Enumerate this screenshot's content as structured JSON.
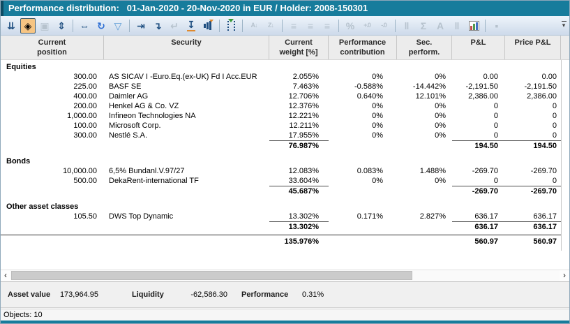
{
  "window": {
    "title": "Performance distribution:   01-Jan-2020 - 20-Nov-2020 in EUR / Holder: 2008-150301",
    "status": "Objects: 10"
  },
  "colors": {
    "accent_teal": "#177c9c",
    "active_icon_bg": "#f7c583",
    "enabled_icon": "#1d4d7f",
    "disabled_icon": "#b6c2cd",
    "orange_accent": "#e08a2e"
  },
  "toolbar": {
    "overflow_glyph": "▾",
    "items": [
      {
        "name": "collapse-tree-icon",
        "glyph": "⇊",
        "state": "enabled"
      },
      {
        "name": "fit-to-window-icon",
        "glyph": "◈",
        "state": "active"
      },
      {
        "name": "select-branch-icon",
        "glyph": "▣",
        "state": "disabled"
      },
      {
        "name": "fit-height-icon",
        "glyph": "⇕",
        "state": "enabled"
      },
      {
        "separator": true
      },
      {
        "name": "fit-width-icon",
        "glyph": "⇔",
        "state": "enabled"
      },
      {
        "name": "refresh-icon",
        "glyph": "↻",
        "state": "enabled",
        "color": "#2e6fd4"
      },
      {
        "name": "filter-icon",
        "glyph": "▽",
        "state": "enabled",
        "color": "#5b9bd5"
      },
      {
        "separator": true
      },
      {
        "name": "insert-column-icon",
        "glyph": "⇥",
        "state": "enabled"
      },
      {
        "name": "insert-row-icon",
        "glyph": "↴",
        "state": "enabled"
      },
      {
        "name": "undo-icon",
        "glyph": "↵",
        "state": "disabled"
      },
      {
        "name": "import-values-icon",
        "glyph": "↧",
        "state": "enabled",
        "accent": "underline"
      },
      {
        "name": "update-chart-icon",
        "kind": "bars",
        "state": "enabled"
      },
      {
        "separator": true
      },
      {
        "name": "column-select-icon",
        "kind": "dotted",
        "state": "enabled"
      },
      {
        "separator": true
      },
      {
        "name": "sort-ascending-icon",
        "glyph": "A↓",
        "state": "disabled",
        "small": true
      },
      {
        "name": "sort-descending-icon",
        "glyph": "Z↓",
        "state": "disabled",
        "small": true
      },
      {
        "separator": true
      },
      {
        "name": "align-left-icon",
        "glyph": "≡",
        "state": "disabled"
      },
      {
        "name": "align-center-icon",
        "glyph": "≡",
        "state": "disabled"
      },
      {
        "name": "align-right-icon",
        "glyph": "≡",
        "state": "disabled"
      },
      {
        "separator": true
      },
      {
        "name": "percent-format-icon",
        "glyph": "%",
        "state": "disabled"
      },
      {
        "name": "increase-decimal-icon",
        "glyph": "+.0",
        "state": "disabled",
        "small": true
      },
      {
        "name": "decrease-decimal-icon",
        "glyph": "-.0",
        "state": "disabled",
        "small": true
      },
      {
        "separator": true
      },
      {
        "name": "cell-format-icon",
        "glyph": "‖",
        "state": "disabled"
      },
      {
        "name": "sum-icon",
        "glyph": "Σ",
        "state": "disabled"
      },
      {
        "name": "font-icon",
        "glyph": "A",
        "state": "disabled"
      },
      {
        "name": "column-width-icon",
        "glyph": "‖",
        "state": "disabled"
      },
      {
        "name": "chart-icon",
        "kind": "chart",
        "state": "enabled"
      },
      {
        "separator": true
      },
      {
        "name": "placeholder-icon",
        "glyph": "▪",
        "state": "disabled"
      }
    ]
  },
  "table": {
    "columns": [
      {
        "key": "position",
        "line1": "Current",
        "line2": "position"
      },
      {
        "key": "security",
        "line1": "Security",
        "line2": ""
      },
      {
        "key": "weight",
        "line1": "Current",
        "line2": "weight [%]"
      },
      {
        "key": "contribution",
        "line1": "Performance",
        "line2": "contribution"
      },
      {
        "key": "sec_perform",
        "line1": "Sec.",
        "line2": "perform."
      },
      {
        "key": "pnl",
        "line1": "P&L",
        "line2": ""
      },
      {
        "key": "price_pnl",
        "line1": "Price P&L",
        "line2": ""
      }
    ],
    "sections": [
      {
        "label": "Equities",
        "rows": [
          {
            "position": "300.00",
            "security": "AS SICAV I -Euro.Eq.(ex-UK) Fd I Acc.EUR",
            "weight": "2.055%",
            "contribution": "0%",
            "sec_perform": "0%",
            "pnl": "0.00",
            "price_pnl": "0.00"
          },
          {
            "position": "225.00",
            "security": "BASF SE",
            "weight": "7.463%",
            "contribution": "-0.588%",
            "sec_perform": "-14.442%",
            "pnl": "-2,191.50",
            "price_pnl": "-2,191.50"
          },
          {
            "position": "400.00",
            "security": "Daimler AG",
            "weight": "12.706%",
            "contribution": "0.640%",
            "sec_perform": "12.101%",
            "pnl": "2,386.00",
            "price_pnl": "2,386.00"
          },
          {
            "position": "200.00",
            "security": "Henkel AG & Co. VZ",
            "weight": "12.376%",
            "contribution": "0%",
            "sec_perform": "0%",
            "pnl": "0",
            "price_pnl": "0"
          },
          {
            "position": "1,000.00",
            "security": "Infineon Technologies NA",
            "weight": "12.221%",
            "contribution": "0%",
            "sec_perform": "0%",
            "pnl": "0",
            "price_pnl": "0"
          },
          {
            "position": "100.00",
            "security": "Microsoft Corp.",
            "weight": "12.211%",
            "contribution": "0%",
            "sec_perform": "0%",
            "pnl": "0",
            "price_pnl": "0"
          },
          {
            "position": "300.00",
            "security": "Nestlé S.A.",
            "weight": "17.955%",
            "contribution": "0%",
            "sec_perform": "0%",
            "pnl": "0",
            "price_pnl": "0"
          }
        ],
        "subtotal": {
          "weight": "76.987%",
          "pnl": "194.50",
          "price_pnl": "194.50"
        }
      },
      {
        "label": "Bonds",
        "rows": [
          {
            "position": "10,000.00",
            "security": "6,5% Bundanl.V.97/27",
            "weight": "12.083%",
            "contribution": "0.083%",
            "sec_perform": "1.488%",
            "pnl": "-269.70",
            "price_pnl": "-269.70"
          },
          {
            "position": "500.00",
            "security": "DekaRent-international TF",
            "weight": "33.604%",
            "contribution": "0%",
            "sec_perform": "0%",
            "pnl": "0",
            "price_pnl": "0"
          }
        ],
        "subtotal": {
          "weight": "45.687%",
          "pnl": "-269.70",
          "price_pnl": "-269.70"
        }
      },
      {
        "label": "Other asset classes",
        "rows": [
          {
            "position": "105.50",
            "security": "DWS Top Dynamic",
            "weight": "13.302%",
            "contribution": "0.171%",
            "sec_perform": "2.827%",
            "pnl": "636.17",
            "price_pnl": "636.17"
          }
        ],
        "subtotal": {
          "weight": "13.302%",
          "pnl": "636.17",
          "price_pnl": "636.17"
        }
      }
    ],
    "grand_total": {
      "weight": "135.976%",
      "pnl": "560.97",
      "price_pnl": "560.97"
    }
  },
  "scrollbar": {
    "left_arrow": "‹",
    "right_arrow": "›"
  },
  "summary": {
    "items": [
      {
        "label": "Asset value",
        "value": "173,964.95"
      },
      {
        "label": "Liquidity",
        "value": "-62,586.30"
      },
      {
        "label": "Performance",
        "value": "0.31%"
      }
    ]
  }
}
